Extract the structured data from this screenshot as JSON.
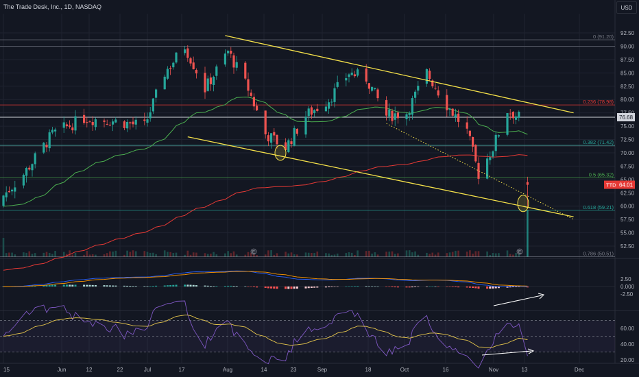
{
  "header": {
    "title": "The Trade Desk, Inc., 1D, NASDAQ",
    "currency": "USD"
  },
  "colors": {
    "background": "#131722",
    "up": "#26a69a",
    "down": "#ef5350",
    "trendline": "#f5e14a",
    "ema_fast": "#4caf50",
    "ema_slow": "#e53935",
    "macd_line": "#2962ff",
    "signal_line": "#ff9800",
    "rsi_line": "#7e57c2",
    "rsi_ma": "#e6c64c",
    "last_price": "#e53935"
  },
  "price_axis": {
    "ticks": [
      "92.50",
      "90.00",
      "87.50",
      "85.00",
      "82.50",
      "80.00",
      "77.50",
      "75.00",
      "72.50",
      "70.00",
      "67.50",
      "65.00",
      "62.50",
      "60.00",
      "57.50",
      "55.00",
      "52.50"
    ],
    "current_price_label": "76.68",
    "last_price_symbol": "TTD",
    "last_price_label": "64.01"
  },
  "fibonacci": [
    {
      "label": "0 (91.20)",
      "value": 91.2
    },
    {
      "label": "0.236 (78.98)",
      "value": 78.98
    },
    {
      "label": "0.382 (71.42)",
      "value": 71.42
    },
    {
      "label": "0.5 (65.32)",
      "value": 65.32
    },
    {
      "label": "0.618 (59.21)",
      "value": 59.21
    },
    {
      "label": "0.786 (50.51)",
      "value": 50.51
    }
  ],
  "macd_axis": {
    "ticks": [
      "2.50",
      "0.000",
      "-2.50"
    ]
  },
  "rsi_axis": {
    "ticks": [
      "60.00",
      "40.00",
      "20.00"
    ]
  },
  "x_axis": {
    "ticks": [
      "15",
      "Jun",
      "12",
      "22",
      "Jul",
      "17",
      "Aug",
      "14",
      "23",
      "Sep",
      "18",
      "Oct",
      "16",
      "Nov",
      "13",
      "Dec"
    ]
  },
  "volume_markers": [
    "E",
    "E"
  ],
  "chart_data": {
    "type": "candlestick",
    "title": "The Trade Desk, Inc., 1D, NASDAQ",
    "y_unit": "USD",
    "ylim": [
      49.5,
      95
    ],
    "x_range": [
      "2023-05-15",
      "2023-12-01"
    ],
    "approx_close_path": [
      {
        "date": "2023-05-15",
        "close": 62.0
      },
      {
        "date": "2023-05-22",
        "close": 66.0
      },
      {
        "date": "2023-06-01",
        "close": 73.5
      },
      {
        "date": "2023-06-12",
        "close": 76.5
      },
      {
        "date": "2023-06-22",
        "close": 76.0
      },
      {
        "date": "2023-07-03",
        "close": 75.0
      },
      {
        "date": "2023-07-10",
        "close": 85.0
      },
      {
        "date": "2023-07-17",
        "close": 90.0
      },
      {
        "date": "2023-07-24",
        "close": 82.0
      },
      {
        "date": "2023-08-01",
        "close": 89.0
      },
      {
        "date": "2023-08-08",
        "close": 82.0
      },
      {
        "date": "2023-08-14",
        "close": 73.5
      },
      {
        "date": "2023-08-21",
        "close": 71.0
      },
      {
        "date": "2023-08-28",
        "close": 77.0
      },
      {
        "date": "2023-09-05",
        "close": 80.0
      },
      {
        "date": "2023-09-12",
        "close": 85.0
      },
      {
        "date": "2023-09-18",
        "close": 84.0
      },
      {
        "date": "2023-09-25",
        "close": 77.0
      },
      {
        "date": "2023-10-02",
        "close": 77.5
      },
      {
        "date": "2023-10-09",
        "close": 85.0
      },
      {
        "date": "2023-10-16",
        "close": 79.0
      },
      {
        "date": "2023-10-23",
        "close": 74.0
      },
      {
        "date": "2023-10-27",
        "close": 66.0
      },
      {
        "date": "2023-11-01",
        "close": 71.0
      },
      {
        "date": "2023-11-06",
        "close": 78.0
      },
      {
        "date": "2023-11-10",
        "close": 76.7
      },
      {
        "date": "2023-11-13",
        "close": 64.0
      }
    ],
    "trendlines": [
      {
        "name": "upper channel",
        "from": [
          "2023-07-31",
          92.0
        ],
        "to": [
          "2023-11-29",
          77.5
        ]
      },
      {
        "name": "lower channel",
        "from": [
          "2023-07-18",
          73.0
        ],
        "to": [
          "2023-11-29",
          58.0
        ]
      }
    ],
    "macd": {
      "ylim": [
        -4.5,
        5.0
      ]
    },
    "rsi": {
      "ylim": [
        15,
        77
      ],
      "bands": [
        70,
        30
      ]
    }
  }
}
